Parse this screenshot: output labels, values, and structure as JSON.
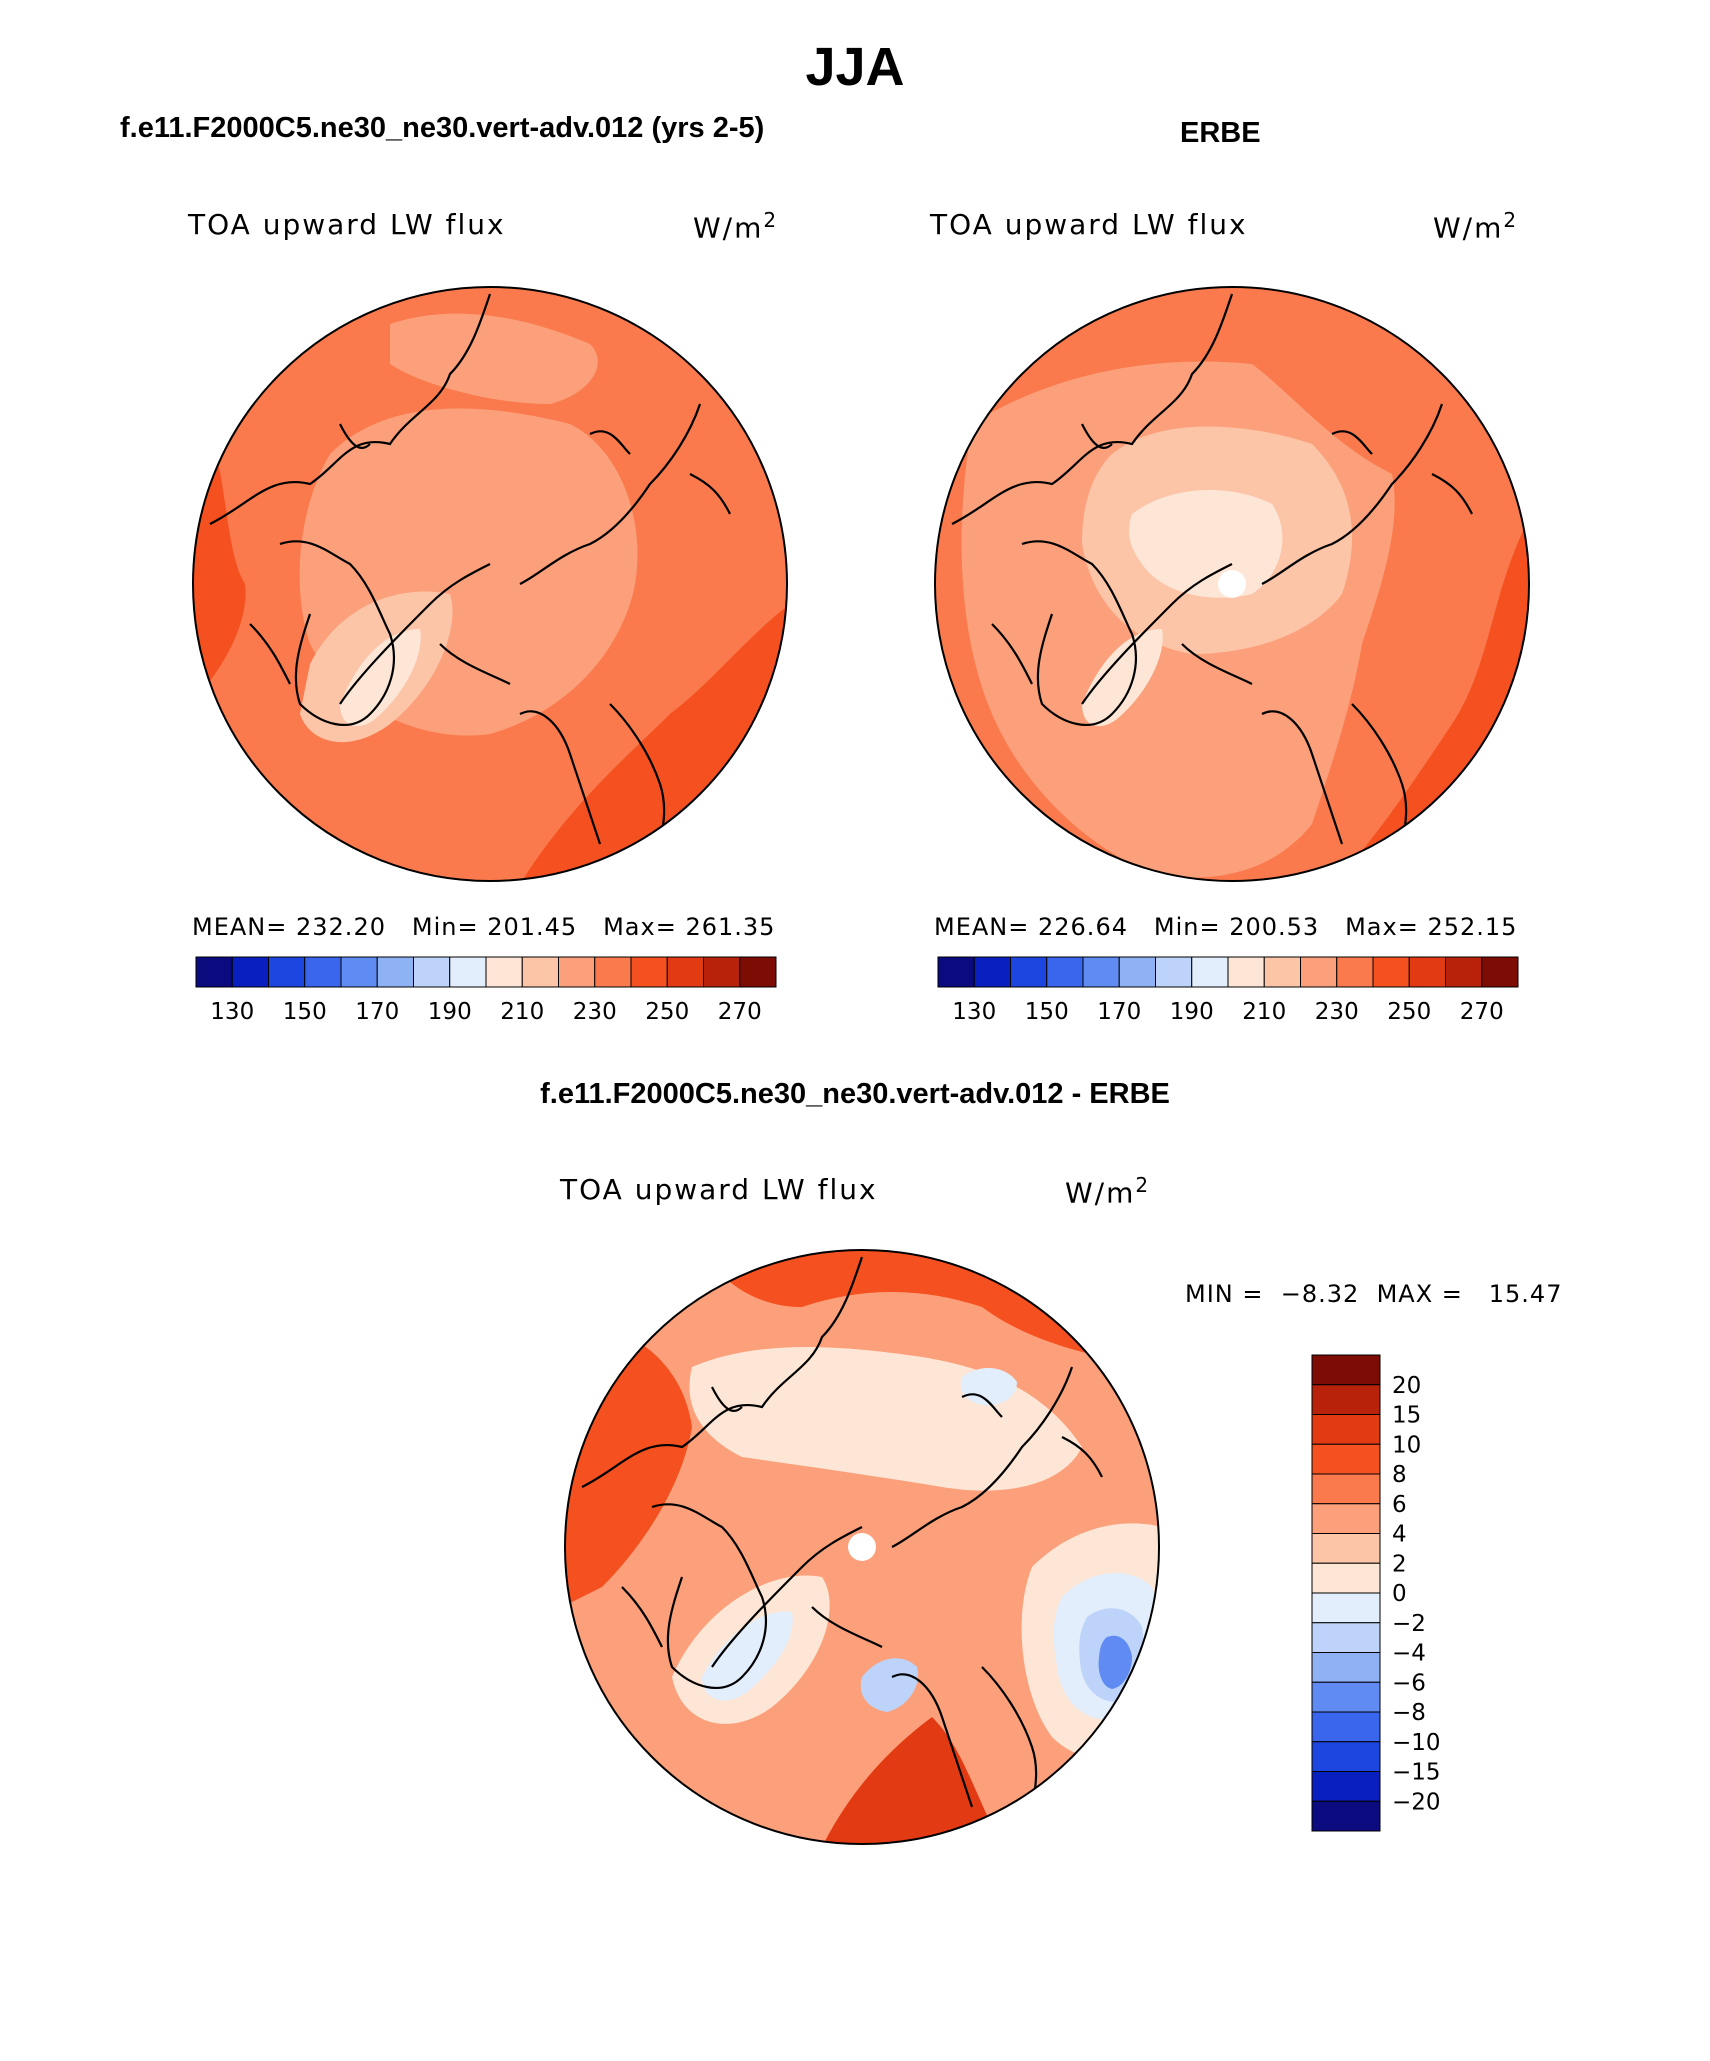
{
  "page_title": "JJA",
  "panels": {
    "model": {
      "title": "f.e11.F2000C5.ne30_ne30.vert-adv.012 (yrs 2-5)",
      "variable": "TOA upward LW flux",
      "units": "W/m",
      "units_sup": "2",
      "stats": {
        "mean_label": "MEAN=",
        "mean": "232.20",
        "min_label": "Min=",
        "min": "201.45",
        "max_label": "Max=",
        "max": "261.35"
      }
    },
    "obs": {
      "title": "ERBE",
      "variable": "TOA upward LW flux",
      "units": "W/m",
      "units_sup": "2",
      "stats": {
        "mean_label": "MEAN=",
        "mean": "226.64",
        "min_label": "Min=",
        "min": "200.53",
        "max_label": "Max=",
        "max": "252.15"
      }
    },
    "diff": {
      "title": "f.e11.F2000C5.ne30_ne30.vert-adv.012 - ERBE",
      "variable": "TOA upward LW flux",
      "units": "W/m",
      "units_sup": "2",
      "minmax": {
        "min_label": "MIN =",
        "min": "−8.32",
        "max_label": "MAX =",
        "max": "15.47"
      }
    }
  },
  "colorbar_abs": {
    "colors": [
      "#0b0a7e",
      "#0a1fbf",
      "#1d46e0",
      "#3a66ee",
      "#5f8bf2",
      "#8fb2f5",
      "#bdd3f9",
      "#e3eefc",
      "#fde6d6",
      "#fcc5a8",
      "#fba07a",
      "#fa7a4d",
      "#f5501f",
      "#e23a12",
      "#b8220a",
      "#7c0c04"
    ],
    "ticks": [
      "130",
      "150",
      "170",
      "190",
      "210",
      "230",
      "250",
      "270"
    ]
  },
  "colorbar_diff": {
    "colors": [
      "#7c0c04",
      "#b8220a",
      "#e23a12",
      "#f5501f",
      "#fa7a4d",
      "#fba07a",
      "#fcc5a8",
      "#fde6d6",
      "#e3eefc",
      "#bdd3f9",
      "#8fb2f5",
      "#5f8bf2",
      "#3a66ee",
      "#1d46e0",
      "#0a1fbf",
      "#0b0a7e"
    ],
    "labels": [
      "20",
      "15",
      "10",
      "8",
      "6",
      "4",
      "2",
      "0",
      "−2",
      "−4",
      "−6",
      "−8",
      "−10",
      "−15",
      "−20"
    ]
  },
  "map_colors": {
    "bg_model": "#fa7a4d",
    "bg_obs": "#fa7a4d",
    "bg_diff": "#fba07a",
    "c_dark": "#f5501f",
    "c_light": "#fba07a",
    "c_lighter": "#fcc5a8",
    "c_pale": "#fde6d6",
    "c_blue1": "#e3eefc",
    "c_blue2": "#bdd3f9",
    "c_blue3": "#5f8bf2",
    "c_red": "#e23a12"
  }
}
